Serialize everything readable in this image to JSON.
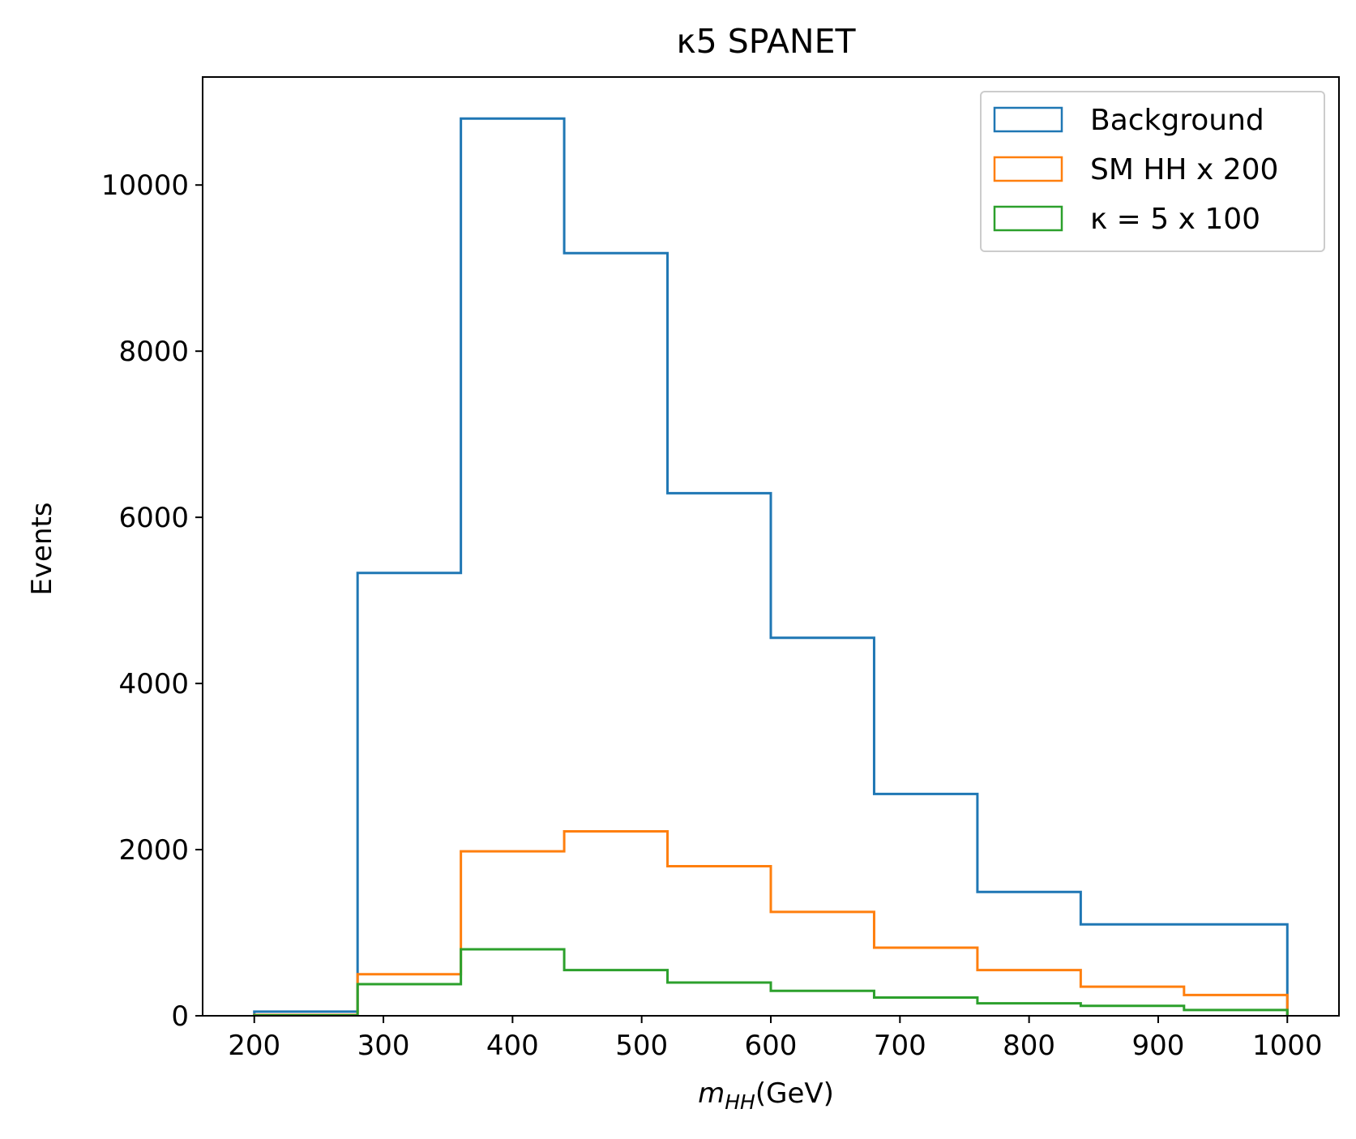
{
  "chart_data": {
    "type": "histogram",
    "title": "κ5 SPANET",
    "xlabel": {
      "main": "m",
      "sub": "HH",
      "rest": "(GeV)"
    },
    "ylabel": "Events",
    "xlim": [
      160,
      1040
    ],
    "ylim": [
      0,
      11300
    ],
    "xticks": [
      200,
      300,
      400,
      500,
      600,
      700,
      800,
      900,
      1000
    ],
    "yticks": [
      0,
      2000,
      4000,
      6000,
      8000,
      10000
    ],
    "bin_edges": [
      200,
      280,
      360,
      440,
      520,
      600,
      680,
      760,
      840,
      920,
      1000
    ],
    "grid": false,
    "legend_position": "top-right",
    "series": [
      {
        "name": "Background",
        "color": "#1f77b4",
        "values": [
          50,
          5330,
          10800,
          9180,
          6290,
          4550,
          2670,
          1490,
          1100,
          1100
        ]
      },
      {
        "name": "SM HH x 200",
        "color": "#ff7f0e",
        "values": [
          10,
          500,
          1980,
          2220,
          1800,
          1250,
          820,
          550,
          350,
          250
        ]
      },
      {
        "name": "κ = 5 x 100",
        "color": "#2ca02c",
        "values": [
          5,
          380,
          800,
          550,
          400,
          300,
          220,
          150,
          120,
          70
        ]
      }
    ]
  }
}
